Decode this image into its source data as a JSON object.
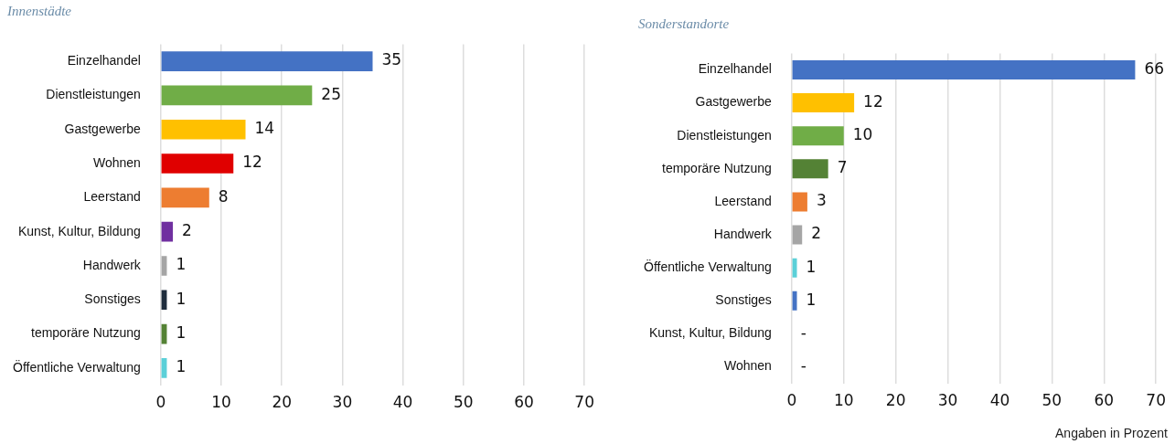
{
  "chart_data": [
    {
      "type": "bar",
      "orientation": "horizontal",
      "title": "Innenstädte",
      "categories": [
        "Einzelhandel",
        "Dienstleistungen",
        "Gastgewerbe",
        "Wohnen",
        "Leerstand",
        "Kunst, Kultur, Bildung",
        "Handwerk",
        "Sonstiges",
        "temporäre Nutzung",
        "Öffentliche Verwaltung"
      ],
      "values": [
        35,
        25,
        14,
        12,
        8,
        2,
        1,
        1,
        1,
        1
      ],
      "colors": [
        "#4472c4",
        "#70ad47",
        "#ffc000",
        "#e00000",
        "#ed7d31",
        "#7030a0",
        "#a5a5a5",
        "#1f2d3d",
        "#548235",
        "#5bd0d8"
      ],
      "xlim": [
        0,
        70
      ],
      "xticks": [
        0,
        10,
        20,
        30,
        40,
        50,
        60,
        70
      ],
      "grid": "x",
      "data_labels": true
    },
    {
      "type": "bar",
      "orientation": "horizontal",
      "title": "Sonderstandorte",
      "categories": [
        "Einzelhandel",
        "Gastgewerbe",
        "Dienstleistungen",
        "temporäre Nutzung",
        "Leerstand",
        "Handwerk",
        "Öffentliche Verwaltung",
        "Sonstiges",
        "Kunst, Kultur, Bildung",
        "Wohnen"
      ],
      "values": [
        66,
        12,
        10,
        7,
        3,
        2,
        1,
        1,
        null,
        null
      ],
      "value_labels": [
        "66",
        "12",
        "10",
        "7",
        "3",
        "2",
        "1",
        "1",
        "-",
        "-"
      ],
      "colors": [
        "#4472c4",
        "#ffc000",
        "#70ad47",
        "#548235",
        "#ed7d31",
        "#a5a5a5",
        "#5bd0d8",
        "#4472c4",
        "#a5a5a5",
        "#a5a5a5"
      ],
      "xlim": [
        0,
        70
      ],
      "xticks": [
        0,
        10,
        20,
        30,
        40,
        50,
        60,
        70
      ],
      "grid": "x",
      "annotations": [
        "Angaben in Prozent"
      ]
    }
  ]
}
